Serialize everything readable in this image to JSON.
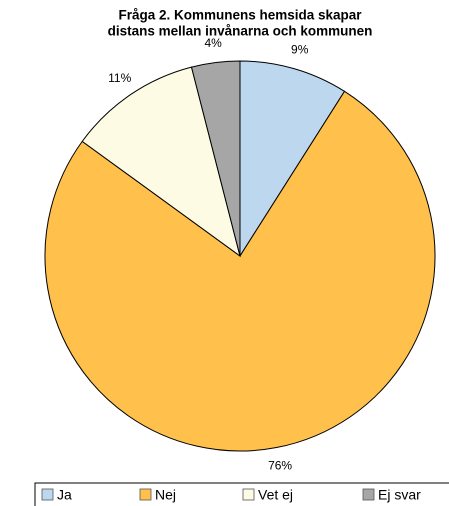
{
  "chart_data": {
    "type": "pie",
    "title": [
      "Fråga 2. Kommunens hemsida skapar",
      "distans mellan invånarna och kommunen"
    ],
    "categories": [
      "Ja",
      "Nej",
      "Vet ej",
      "Ej svar"
    ],
    "values": [
      9,
      76,
      11,
      4
    ],
    "value_labels": [
      "9%",
      "76%",
      "11%",
      "4%"
    ],
    "colors": [
      "#bdd7ee",
      "#ffc04c",
      "#fdfbe4",
      "#a6a6a6"
    ],
    "legend": "bottom"
  }
}
